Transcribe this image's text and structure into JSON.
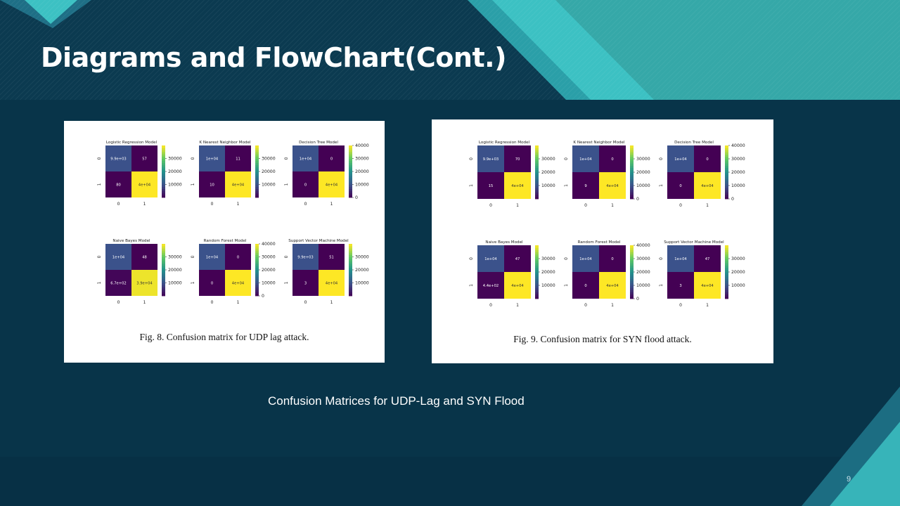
{
  "slide": {
    "title": "Diagrams and FlowChart(Cont.)",
    "subtitle": "Confusion Matrices for UDP-Lag and SYN Flood",
    "page_number": "9"
  },
  "colors": {
    "background": "#083449",
    "accent_teal": "#3cc1c3",
    "low": "#440154",
    "mid": "#3b528b",
    "high": "#fde725"
  },
  "figure_a": {
    "caption": "Fig. 8. Confusion matrix for UDP lag attack.",
    "chart_data": [
      {
        "type": "heatmap",
        "title": "Logistic Regression Model",
        "x_ticks": [
          "0",
          "1"
        ],
        "y_ticks": [
          "0",
          "1"
        ],
        "cells": [
          [
            9900,
            57
          ],
          [
            80,
            40000
          ]
        ],
        "labels": [
          [
            "9.9e+03",
            "57"
          ],
          [
            "80",
            "4e+04"
          ]
        ],
        "colorbar_ticks": [
          "10000",
          "20000",
          "30000"
        ],
        "vmax": 40000
      },
      {
        "type": "heatmap",
        "title": "K Nearest Neighbor Model",
        "x_ticks": [
          "0",
          "1"
        ],
        "y_ticks": [
          "0",
          "1"
        ],
        "cells": [
          [
            10000,
            11
          ],
          [
            10,
            40000
          ]
        ],
        "labels": [
          [
            "1e+04",
            "11"
          ],
          [
            "10",
            "4e+04"
          ]
        ],
        "colorbar_ticks": [
          "10000",
          "20000",
          "30000"
        ],
        "vmax": 40000
      },
      {
        "type": "heatmap",
        "title": "Decision Tree Model",
        "x_ticks": [
          "0",
          "1"
        ],
        "y_ticks": [
          "0",
          "1"
        ],
        "cells": [
          [
            10000,
            0
          ],
          [
            0,
            40000
          ]
        ],
        "labels": [
          [
            "1e+04",
            "0"
          ],
          [
            "0",
            "4e+04"
          ]
        ],
        "colorbar_ticks": [
          "0",
          "10000",
          "20000",
          "30000",
          "40000"
        ],
        "vmax": 40000
      },
      {
        "type": "heatmap",
        "title": "Naive Bayes Model",
        "x_ticks": [
          "0",
          "1"
        ],
        "y_ticks": [
          "0",
          "1"
        ],
        "cells": [
          [
            10000,
            48
          ],
          [
            670,
            39000
          ]
        ],
        "labels": [
          [
            "1e+04",
            "48"
          ],
          [
            "6.7e+02",
            "3.9e+04"
          ]
        ],
        "colorbar_ticks": [
          "10000",
          "20000",
          "30000"
        ],
        "vmax": 40000
      },
      {
        "type": "heatmap",
        "title": "Random Forest Model",
        "x_ticks": [
          "0",
          "1"
        ],
        "y_ticks": [
          "0",
          "1"
        ],
        "cells": [
          [
            10000,
            0
          ],
          [
            0,
            40000
          ]
        ],
        "labels": [
          [
            "1e+04",
            "0"
          ],
          [
            "0",
            "4e+04"
          ]
        ],
        "colorbar_ticks": [
          "0",
          "10000",
          "20000",
          "30000",
          "40000"
        ],
        "vmax": 40000
      },
      {
        "type": "heatmap",
        "title": "Support Vector Machine Model",
        "x_ticks": [
          "0",
          "1"
        ],
        "y_ticks": [
          "0",
          "1"
        ],
        "cells": [
          [
            9900,
            51
          ],
          [
            3,
            40000
          ]
        ],
        "labels": [
          [
            "9.9e+03",
            "51"
          ],
          [
            "3",
            "4e+04"
          ]
        ],
        "colorbar_ticks": [
          "10000",
          "20000",
          "30000"
        ],
        "vmax": 40000
      }
    ]
  },
  "figure_b": {
    "caption": "Fig. 9. Confusion matrix for SYN flood attack.",
    "chart_data": [
      {
        "type": "heatmap",
        "title": "Logistic Regression Model",
        "x_ticks": [
          "0",
          "1"
        ],
        "y_ticks": [
          "0",
          "1"
        ],
        "cells": [
          [
            9900,
            70
          ],
          [
            15,
            40000
          ]
        ],
        "labels": [
          [
            "9.9e+03",
            "70"
          ],
          [
            "15",
            "4e+04"
          ]
        ],
        "colorbar_ticks": [
          "10000",
          "20000",
          "30000"
        ],
        "vmax": 40000
      },
      {
        "type": "heatmap",
        "title": "K Nearest Neighbor Model",
        "x_ticks": [
          "0",
          "1"
        ],
        "y_ticks": [
          "0",
          "1"
        ],
        "cells": [
          [
            10000,
            0
          ],
          [
            9,
            40000
          ]
        ],
        "labels": [
          [
            "1e+04",
            "0"
          ],
          [
            "9",
            "4e+04"
          ]
        ],
        "colorbar_ticks": [
          "0",
          "10000",
          "20000",
          "30000"
        ],
        "vmax": 40000
      },
      {
        "type": "heatmap",
        "title": "Decision Tree Model",
        "x_ticks": [
          "0",
          "1"
        ],
        "y_ticks": [
          "0",
          "1"
        ],
        "cells": [
          [
            10000,
            0
          ],
          [
            0,
            40000
          ]
        ],
        "labels": [
          [
            "1e+04",
            "0"
          ],
          [
            "0",
            "4e+04"
          ]
        ],
        "colorbar_ticks": [
          "0",
          "10000",
          "20000",
          "30000",
          "40000"
        ],
        "vmax": 40000
      },
      {
        "type": "heatmap",
        "title": "Naive Bayes Model",
        "x_ticks": [
          "0",
          "1"
        ],
        "y_ticks": [
          "0",
          "1"
        ],
        "cells": [
          [
            10000,
            47
          ],
          [
            440,
            40000
          ]
        ],
        "labels": [
          [
            "1e+04",
            "47"
          ],
          [
            "4.4e+02",
            "4e+04"
          ]
        ],
        "colorbar_ticks": [
          "10000",
          "20000",
          "30000"
        ],
        "vmax": 40000
      },
      {
        "type": "heatmap",
        "title": "Random Forest Model",
        "x_ticks": [
          "0",
          "1"
        ],
        "y_ticks": [
          "0",
          "1"
        ],
        "cells": [
          [
            10000,
            0
          ],
          [
            0,
            40000
          ]
        ],
        "labels": [
          [
            "1e+04",
            "0"
          ],
          [
            "0",
            "4e+04"
          ]
        ],
        "colorbar_ticks": [
          "0",
          "10000",
          "20000",
          "30000",
          "40000"
        ],
        "vmax": 40000
      },
      {
        "type": "heatmap",
        "title": "Support Vector Machine Model",
        "x_ticks": [
          "0",
          "1"
        ],
        "y_ticks": [
          "0",
          "1"
        ],
        "cells": [
          [
            10000,
            47
          ],
          [
            3,
            40000
          ]
        ],
        "labels": [
          [
            "1e+04",
            "47"
          ],
          [
            "3",
            "4e+04"
          ]
        ],
        "colorbar_ticks": [
          "10000",
          "20000",
          "30000"
        ],
        "vmax": 40000
      }
    ]
  }
}
